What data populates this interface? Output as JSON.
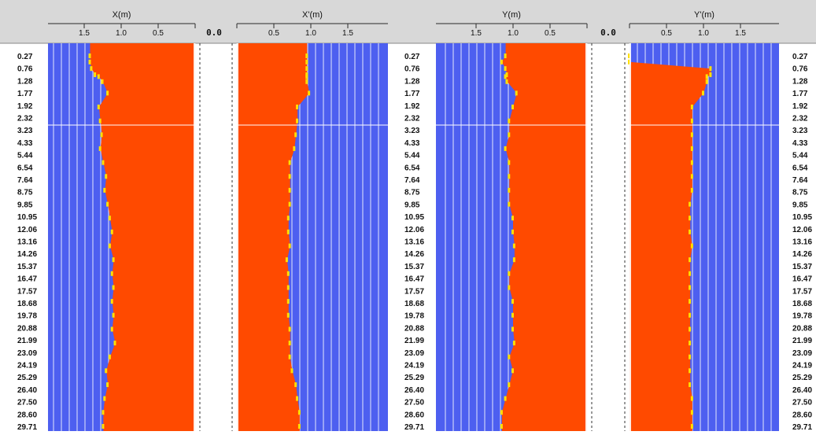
{
  "colors": {
    "background": "#4d5ff0",
    "fill": "#ff4a00",
    "highlight": "#ffe000",
    "gridline": "#ffffff",
    "header": "#d8d8d8",
    "ruler": "#2a2a2a"
  },
  "chart_data": [
    {
      "type": "area",
      "title": "X(m)",
      "direction": "left",
      "tick_labels": [
        "1.5",
        "1.0",
        "0.5",
        "0.0"
      ],
      "xlim": [
        1.75,
        0
      ],
      "ylabel": "",
      "depth": [
        0.27,
        0.76,
        1.28,
        1.77,
        1.92,
        2.32,
        3.23,
        4.33,
        5.44,
        6.54,
        7.64,
        8.75,
        9.85,
        10.95,
        12.06,
        13.16,
        14.26,
        15.37,
        16.47,
        17.57,
        18.68,
        19.78,
        20.88,
        21.99,
        23.09,
        24.19,
        25.29,
        26.4,
        27.5,
        28.6,
        29.71
      ],
      "values": [
        1.42,
        1.42,
        1.4,
        1.35,
        1.3,
        1.25,
        1.18,
        1.3,
        1.28,
        1.26,
        1.28,
        1.24,
        1.2,
        1.22,
        1.18,
        1.15,
        1.12,
        1.15,
        1.1,
        1.12,
        1.1,
        1.12,
        1.1,
        1.12,
        1.08,
        1.15,
        1.2,
        1.18,
        1.22,
        1.24,
        1.24
      ]
    },
    {
      "type": "area",
      "title": "X'(m)",
      "direction": "right",
      "tick_labels": [
        "0.0",
        "0.5",
        "1.0",
        "1.5"
      ],
      "xlim": [
        0,
        1.75
      ],
      "ylabel": "",
      "depth": [
        0.27,
        0.76,
        1.28,
        1.77,
        1.92,
        2.32,
        3.23,
        4.33,
        5.44,
        6.54,
        7.64,
        8.75,
        9.85,
        10.95,
        12.06,
        13.16,
        14.26,
        15.37,
        16.47,
        17.57,
        18.68,
        19.78,
        20.88,
        21.99,
        23.09,
        24.19,
        25.29,
        26.4,
        27.5,
        28.6,
        29.71
      ],
      "values": [
        0.95,
        0.95,
        0.95,
        0.95,
        0.95,
        0.95,
        0.98,
        0.82,
        0.82,
        0.8,
        0.78,
        0.72,
        0.72,
        0.72,
        0.72,
        0.7,
        0.7,
        0.72,
        0.68,
        0.7,
        0.7,
        0.7,
        0.7,
        0.72,
        0.72,
        0.72,
        0.75,
        0.8,
        0.82,
        0.85,
        0.85
      ]
    },
    {
      "type": "area",
      "title": "Y(m)",
      "direction": "left",
      "tick_labels": [
        "1.5",
        "1.0",
        "0.5",
        "0.0"
      ],
      "xlim": [
        1.75,
        0
      ],
      "ylabel": "",
      "depth": [
        0.27,
        0.76,
        1.28,
        1.77,
        1.92,
        2.32,
        3.23,
        4.33,
        5.44,
        6.54,
        7.64,
        8.75,
        9.85,
        10.95,
        12.06,
        13.16,
        14.26,
        15.37,
        16.47,
        17.57,
        18.68,
        19.78,
        20.88,
        21.99,
        23.09,
        24.19,
        25.29,
        26.4,
        27.5,
        28.6,
        29.71
      ],
      "values": [
        1.1,
        1.15,
        1.1,
        1.08,
        1.1,
        1.08,
        0.95,
        1.0,
        1.05,
        1.05,
        1.1,
        1.05,
        1.05,
        1.05,
        1.05,
        1.0,
        1.0,
        0.98,
        0.98,
        1.05,
        1.05,
        1.0,
        1.0,
        1.0,
        0.98,
        1.05,
        1.0,
        1.05,
        1.1,
        1.15,
        1.15
      ]
    },
    {
      "type": "area",
      "title": "Y'(m)",
      "direction": "right",
      "tick_labels": [
        "0.0",
        "0.5",
        "1.0",
        "1.5"
      ],
      "xlim": [
        0,
        1.75
      ],
      "ylabel": "",
      "depth": [
        0.27,
        0.76,
        1.28,
        1.77,
        1.92,
        2.32,
        3.23,
        4.33,
        5.44,
        6.54,
        7.64,
        8.75,
        9.85,
        10.95,
        12.06,
        13.16,
        14.26,
        15.37,
        16.47,
        17.57,
        18.68,
        19.78,
        20.88,
        21.99,
        23.09,
        24.19,
        25.29,
        26.4,
        27.5,
        28.6,
        29.71
      ],
      "values": [
        0,
        0,
        1.1,
        1.1,
        1.05,
        1.05,
        1.0,
        0.85,
        0.85,
        0.85,
        0.85,
        0.85,
        0.85,
        0.85,
        0.82,
        0.82,
        0.82,
        0.85,
        0.82,
        0.82,
        0.82,
        0.82,
        0.82,
        0.82,
        0.82,
        0.82,
        0.82,
        0.82,
        0.85,
        0.85,
        0.85
      ]
    }
  ],
  "depth_labels": [
    "0.27",
    "0.76",
    "1.28",
    "1.77",
    "1.92",
    "2.32",
    "3.23",
    "4.33",
    "5.44",
    "6.54",
    "7.64",
    "8.75",
    "9.85",
    "10.95",
    "12.06",
    "13.16",
    "14.26",
    "15.37",
    "16.47",
    "17.57",
    "18.68",
    "19.78",
    "20.88",
    "21.99",
    "23.09",
    "24.19",
    "25.29",
    "26.40",
    "27.50",
    "28.60",
    "29.71"
  ],
  "zero_label_1": "0.0",
  "zero_label_2": "0.0"
}
